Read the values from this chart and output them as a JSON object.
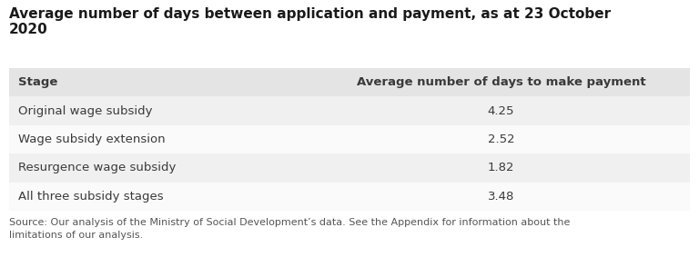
{
  "title_line1": "Average number of days between application and payment, as at 23 October",
  "title_line2": "2020",
  "col1_header": "Stage",
  "col2_header": "Average number of days to make payment",
  "rows": [
    [
      "Original wage subsidy",
      "4.25"
    ],
    [
      "Wage subsidy extension",
      "2.52"
    ],
    [
      "Resurgence wage subsidy",
      "1.82"
    ],
    [
      "All three subsidy stages",
      "3.48"
    ]
  ],
  "source_text": "Source: Our analysis of the Ministry of Social Development’s data. See the Appendix for information about the\nlimitations of our analysis.",
  "header_bg": "#e4e4e4",
  "row_bg_odd": "#f0f0f0",
  "row_bg_even": "#fafafa",
  "text_color": "#3a3a3a",
  "title_color": "#1a1a1a",
  "source_color": "#555555",
  "col_split": 0.445,
  "background_color": "#ffffff",
  "title_fontsize": 11.0,
  "header_fontsize": 9.5,
  "row_fontsize": 9.5,
  "source_fontsize": 8.0
}
